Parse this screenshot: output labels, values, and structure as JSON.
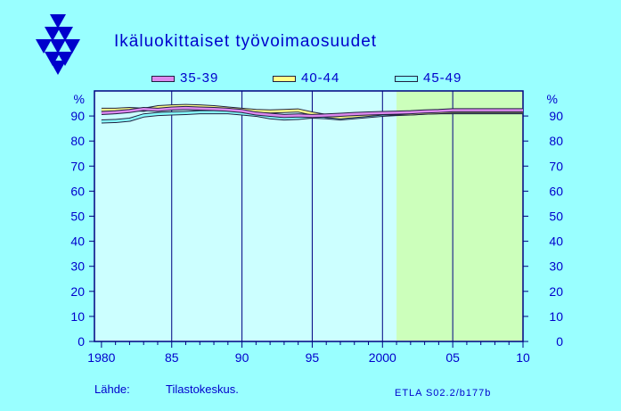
{
  "title": "Ikäluokittaiset työvoimaosuudet",
  "source_label": "Lähde:",
  "source_text": "Tilastokeskus.",
  "code": "ETLA S02.2/b177b",
  "colors": {
    "background": "#99FFFF",
    "plot_area": "#CCFFFF",
    "forecast_area": "#CCFFBB",
    "text": "#0000CC",
    "axis": "#000080"
  },
  "chart_data": {
    "type": "line",
    "title": "Ikäluokittaiset työvoimaosuudet",
    "xlabel": "",
    "ylabel": "%",
    "xlim": [
      1979.5,
      2010
    ],
    "ylim": [
      0,
      100
    ],
    "x_ticks": [
      "1980",
      "85",
      "90",
      "95",
      "2000",
      "05",
      "10"
    ],
    "y_ticks": [
      "0",
      "10",
      "20",
      "30",
      "40",
      "50",
      "60",
      "70",
      "80",
      "90",
      "%"
    ],
    "grid": "vertical",
    "legend_position": "top",
    "forecast_shading_from": 2001,
    "series": [
      {
        "name": "35-39",
        "color": "#DD88EE",
        "x": [
          1980,
          1981,
          1982,
          1983,
          1984,
          1985,
          1986,
          1987,
          1988,
          1989,
          1990,
          1991,
          1992,
          1993,
          1994,
          1995,
          1996,
          1997,
          1998,
          1999,
          2000,
          2001,
          2002,
          2003,
          2004,
          2005,
          2006,
          2007,
          2008,
          2009,
          2010
        ],
        "values": [
          91.2,
          91.5,
          92.0,
          92.8,
          92.5,
          93.0,
          93.2,
          93.0,
          92.8,
          92.5,
          92.0,
          91.0,
          90.5,
          90.0,
          90.2,
          90.0,
          90.2,
          90.5,
          90.8,
          91.0,
          91.2,
          91.3,
          91.5,
          91.8,
          92.0,
          92.3,
          92.3,
          92.3,
          92.3,
          92.3,
          92.3
        ]
      },
      {
        "name": "40-44",
        "color": "#FFFF88",
        "x": [
          1980,
          1981,
          1982,
          1983,
          1984,
          1985,
          1986,
          1987,
          1988,
          1989,
          1990,
          1991,
          1992,
          1993,
          1994,
          1995,
          1996,
          1997,
          1998,
          1999,
          2000,
          2001,
          2002,
          2003,
          2004,
          2005,
          2006,
          2007,
          2008,
          2009,
          2010
        ],
        "values": [
          92.5,
          92.5,
          92.8,
          92.5,
          93.5,
          93.8,
          94.0,
          93.8,
          93.5,
          93.0,
          92.5,
          92.0,
          91.8,
          92.0,
          92.2,
          91.0,
          90.0,
          89.5,
          90.0,
          90.5,
          91.0,
          91.0,
          91.0,
          91.3,
          91.5,
          91.8,
          91.8,
          91.8,
          91.8,
          91.8,
          91.8
        ]
      },
      {
        "name": "45-49",
        "color": "#88FFFF",
        "x": [
          1980,
          1981,
          1982,
          1983,
          1984,
          1985,
          1986,
          1987,
          1988,
          1989,
          1990,
          1991,
          1992,
          1993,
          1994,
          1995,
          1996,
          1997,
          1998,
          1999,
          2000,
          2001,
          2002,
          2003,
          2004,
          2005,
          2006,
          2007,
          2008,
          2009,
          2010
        ],
        "values": [
          87.8,
          88.0,
          88.5,
          90.2,
          90.8,
          91.0,
          91.2,
          91.5,
          91.5,
          91.5,
          91.0,
          90.5,
          89.5,
          89.0,
          89.2,
          89.8,
          89.5,
          89.0,
          89.5,
          90.0,
          90.5,
          90.8,
          91.0,
          91.3,
          91.5,
          91.5,
          91.5,
          91.5,
          91.5,
          91.5,
          91.5
        ]
      }
    ]
  }
}
